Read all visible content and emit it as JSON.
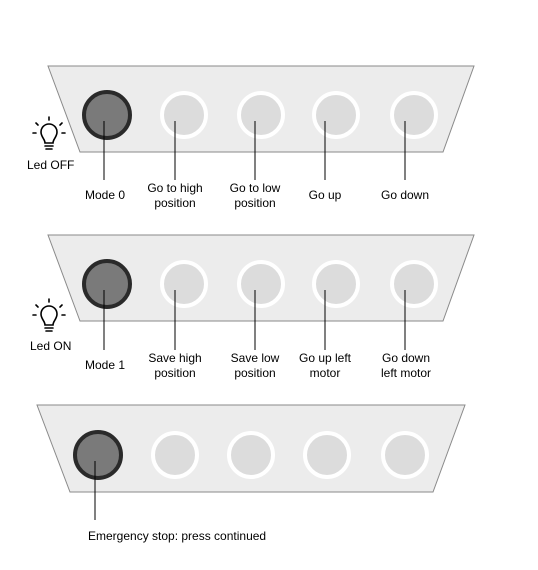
{
  "panels": [
    {
      "led_icon": "lightbulb-icon",
      "led_label": "Led OFF",
      "buttons": [
        "Mode 0",
        "Go to high\nposition",
        "Go to low\nposition",
        "Go up",
        "Go down"
      ]
    },
    {
      "led_icon": "lightbulb-icon",
      "led_label": "Led ON",
      "buttons": [
        "Mode 1",
        "Save high\nposition",
        "Save low\nposition",
        "Go up left\nmotor",
        "Go down\nleft motor"
      ]
    },
    {
      "note": "Emergency stop: press continued"
    }
  ],
  "colors": {
    "panel_fill": "#ececec",
    "panel_stroke": "#8a8a8a",
    "dark_button_fill": "#7a7a7a",
    "dark_button_ring": "#2a2a2a",
    "light_button_fill": "#dcdcdc",
    "light_button_ring": "#ffffff"
  }
}
